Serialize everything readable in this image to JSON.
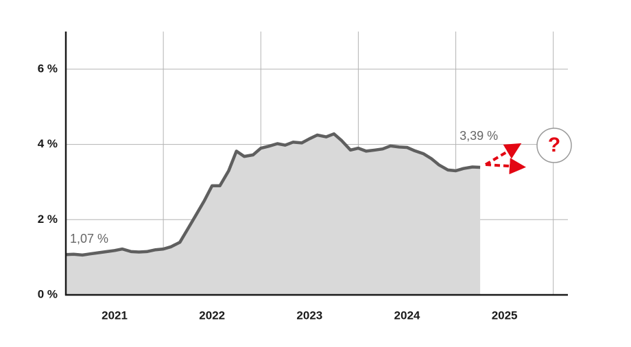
{
  "chart_data": {
    "type": "area",
    "x": [
      2021.0,
      2021.08,
      2021.17,
      2021.25,
      2021.33,
      2021.42,
      2021.5,
      2021.58,
      2021.67,
      2021.75,
      2021.83,
      2021.92,
      2022.0,
      2022.08,
      2022.17,
      2022.25,
      2022.33,
      2022.42,
      2022.5,
      2022.58,
      2022.67,
      2022.75,
      2022.83,
      2022.92,
      2023.0,
      2023.08,
      2023.17,
      2023.25,
      2023.33,
      2023.42,
      2023.5,
      2023.58,
      2023.67,
      2023.75,
      2023.83,
      2023.92,
      2024.0,
      2024.08,
      2024.17,
      2024.25,
      2024.33,
      2024.42,
      2024.5,
      2024.58,
      2024.67,
      2024.75,
      2024.83,
      2024.92,
      2025.0,
      2025.08,
      2025.17,
      2025.25
    ],
    "series": [
      {
        "color": "#5f5f5f",
        "fill": "#d9d9d9",
        "values": [
          1.07,
          1.08,
          1.06,
          1.09,
          1.12,
          1.15,
          1.18,
          1.22,
          1.15,
          1.14,
          1.15,
          1.2,
          1.22,
          1.28,
          1.4,
          1.75,
          2.1,
          2.5,
          2.9,
          2.9,
          3.3,
          3.82,
          3.68,
          3.72,
          3.9,
          3.95,
          4.02,
          3.98,
          4.06,
          4.04,
          4.15,
          4.25,
          4.2,
          4.28,
          4.1,
          3.85,
          3.9,
          3.82,
          3.85,
          3.88,
          3.96,
          3.93,
          3.92,
          3.83,
          3.75,
          3.62,
          3.45,
          3.32,
          3.3,
          3.36,
          3.4,
          3.39
        ],
        "value_labels": [
          "1,07 %",
          null,
          null,
          null,
          null,
          null,
          null,
          null,
          null,
          null,
          null,
          null,
          null,
          null,
          null,
          null,
          null,
          null,
          null,
          null,
          null,
          null,
          null,
          null,
          null,
          null,
          null,
          null,
          null,
          null,
          null,
          null,
          null,
          null,
          null,
          null,
          null,
          null,
          null,
          null,
          null,
          null,
          null,
          null,
          null,
          null,
          null,
          null,
          null,
          null,
          null,
          "3,39 %"
        ]
      }
    ],
    "year_labels": [
      "2021",
      "2022",
      "2023",
      "2024",
      "2025"
    ],
    "xlim": [
      2021,
      2026.15
    ],
    "xticks": [
      2022,
      2023,
      2024,
      2025,
      2026
    ],
    "ylim": [
      0,
      7
    ],
    "yticks": [
      {
        "value": 0,
        "label": "0 %"
      },
      {
        "value": 2,
        "label": "2 %"
      },
      {
        "value": 4,
        "label": "4 %"
      },
      {
        "value": 6,
        "label": "6 %"
      }
    ],
    "grid": true,
    "question": "?"
  }
}
